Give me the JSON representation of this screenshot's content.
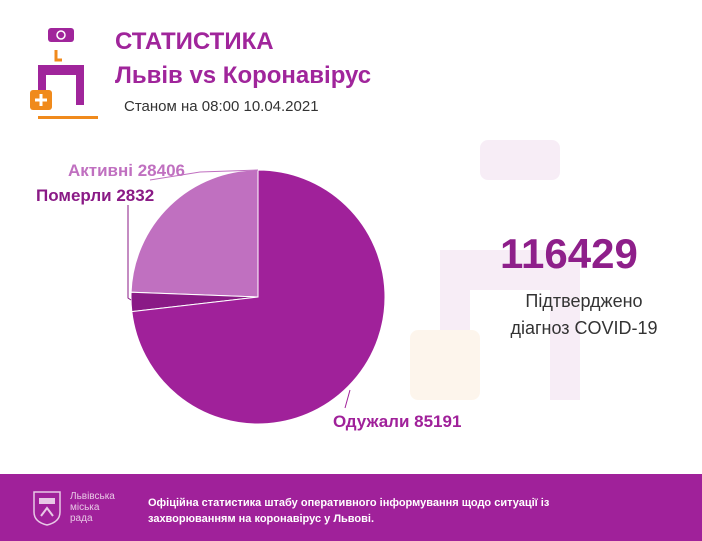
{
  "header": {
    "title": "СТАТИСТИКА",
    "subtitle": "Львів vs Коронавірус",
    "date": "Станом на 08:00 10.04.2021"
  },
  "summary": {
    "total": "116429",
    "label_line1": "Підтверджено",
    "label_line2": "діагноз COVID-19"
  },
  "footer": {
    "council_line1": "Львівська",
    "council_line2": "міська",
    "council_line3": "рада",
    "text": "Офіційна статистика штабу оперативного інформування щодо ситуації із захворюванням на коронавірус у Львові."
  },
  "chart_data": {
    "type": "pie",
    "labels": [
      {
        "name": "Активні",
        "value": 28406,
        "text": "Активні 28406",
        "color": "#c070c0"
      },
      {
        "name": "Померли",
        "value": 2832,
        "text": "Померли 2832",
        "color": "#8a1a86"
      },
      {
        "name": "Одужали",
        "value": 85191,
        "text": "Одужали 85191",
        "color": "#a0219a"
      }
    ],
    "start": "12 o'clock",
    "direction": "counterclockwise"
  }
}
